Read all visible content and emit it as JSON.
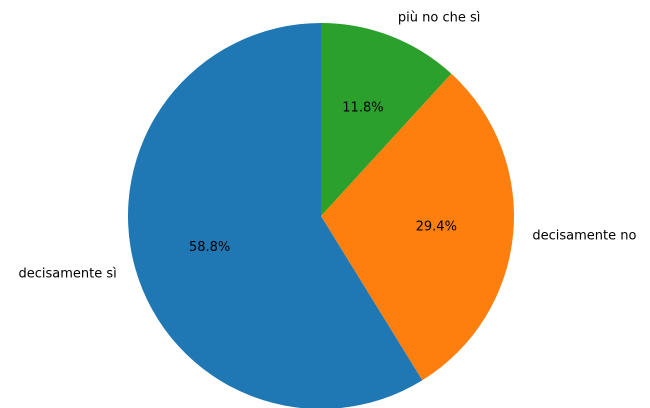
{
  "chart_data": {
    "type": "pie",
    "labels": [
      "decisamente sì",
      "decisamente no",
      "più no che sì"
    ],
    "values": [
      58.8,
      29.4,
      11.8
    ],
    "percent_labels": [
      "58.8%",
      "29.4%",
      "11.8%"
    ],
    "colors": [
      "#1f77b4",
      "#ff7f0e",
      "#2ca02c"
    ],
    "start_angle_deg": 90,
    "direction": "counterclockwise",
    "legend": "none"
  }
}
